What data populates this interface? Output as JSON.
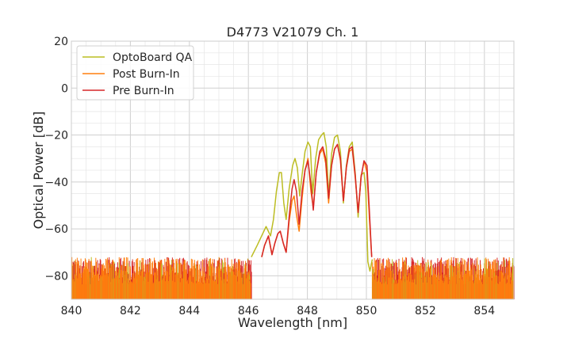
{
  "chart_data": {
    "type": "line",
    "title": "D4773 V21079 Ch. 1",
    "xlabel": "Wavelength [nm]",
    "ylabel": "Optical Power [dB]",
    "xlim": [
      840,
      855
    ],
    "ylim": [
      -90,
      20
    ],
    "xticks": [
      840,
      842,
      844,
      846,
      848,
      850,
      852,
      854
    ],
    "yticks": [
      -80,
      -60,
      -40,
      -20,
      0,
      20
    ],
    "xtick_labels": [
      "840",
      "842",
      "844",
      "846",
      "848",
      "850",
      "852",
      "854"
    ],
    "ytick_labels": [
      "−80",
      "−60",
      "−40",
      "−20",
      "0",
      "20"
    ],
    "grid": true,
    "legend_position": "top-left",
    "noise_floor": {
      "min": -90,
      "max": -72,
      "range_left": [
        840,
        846.1
      ],
      "range_right": [
        850.2,
        855
      ]
    },
    "series": [
      {
        "name": "OptoBoard QA",
        "color": "#bcbd22",
        "points": [
          [
            846.1,
            -72
          ],
          [
            846.3,
            -67
          ],
          [
            846.45,
            -63
          ],
          [
            846.6,
            -59
          ],
          [
            846.75,
            -63
          ],
          [
            846.85,
            -56
          ],
          [
            846.95,
            -44
          ],
          [
            847.05,
            -36
          ],
          [
            847.12,
            -36
          ],
          [
            847.2,
            -49
          ],
          [
            847.28,
            -56
          ],
          [
            847.38,
            -43
          ],
          [
            847.5,
            -33
          ],
          [
            847.58,
            -30
          ],
          [
            847.66,
            -34
          ],
          [
            847.74,
            -46
          ],
          [
            847.82,
            -37
          ],
          [
            847.92,
            -27
          ],
          [
            848.02,
            -23
          ],
          [
            848.1,
            -25
          ],
          [
            848.18,
            -45
          ],
          [
            848.28,
            -30
          ],
          [
            848.38,
            -22
          ],
          [
            848.48,
            -20
          ],
          [
            848.56,
            -19
          ],
          [
            848.64,
            -25
          ],
          [
            848.72,
            -46
          ],
          [
            848.82,
            -28
          ],
          [
            848.92,
            -21
          ],
          [
            849.02,
            -20
          ],
          [
            849.12,
            -27
          ],
          [
            849.22,
            -49
          ],
          [
            849.32,
            -33
          ],
          [
            849.42,
            -25
          ],
          [
            849.52,
            -23
          ],
          [
            849.62,
            -36
          ],
          [
            849.72,
            -55
          ],
          [
            849.82,
            -37
          ],
          [
            849.92,
            -36
          ],
          [
            849.98,
            -44
          ],
          [
            850.05,
            -74
          ],
          [
            850.12,
            -78
          ],
          [
            850.2,
            -73
          ]
        ]
      },
      {
        "name": "Post Burn-In",
        "color": "#ff7f0e",
        "points": [
          [
            846.45,
            -72
          ],
          [
            846.55,
            -67
          ],
          [
            846.68,
            -63
          ],
          [
            846.8,
            -71
          ],
          [
            846.9,
            -66
          ],
          [
            847.0,
            -62
          ],
          [
            847.08,
            -61
          ],
          [
            847.18,
            -66
          ],
          [
            847.28,
            -70
          ],
          [
            847.38,
            -57
          ],
          [
            847.48,
            -48
          ],
          [
            847.55,
            -46
          ],
          [
            847.63,
            -54
          ],
          [
            847.72,
            -61
          ],
          [
            847.82,
            -47
          ],
          [
            847.92,
            -35
          ],
          [
            848.02,
            -30
          ],
          [
            848.12,
            -44
          ],
          [
            848.2,
            -51
          ],
          [
            848.3,
            -36
          ],
          [
            848.42,
            -28
          ],
          [
            848.52,
            -26
          ],
          [
            848.62,
            -32
          ],
          [
            848.72,
            -49
          ],
          [
            848.82,
            -33
          ],
          [
            848.92,
            -26
          ],
          [
            849.02,
            -24
          ],
          [
            849.12,
            -31
          ],
          [
            849.22,
            -48
          ],
          [
            849.32,
            -34
          ],
          [
            849.42,
            -27
          ],
          [
            849.52,
            -26
          ],
          [
            849.62,
            -38
          ],
          [
            849.72,
            -53
          ],
          [
            849.82,
            -38
          ],
          [
            849.92,
            -31
          ],
          [
            850.02,
            -36
          ],
          [
            850.1,
            -55
          ],
          [
            850.18,
            -72
          ]
        ]
      },
      {
        "name": "Pre Burn-In",
        "color": "#d62728",
        "points": [
          [
            846.45,
            -72
          ],
          [
            846.55,
            -67
          ],
          [
            846.68,
            -63
          ],
          [
            846.8,
            -71
          ],
          [
            846.9,
            -66
          ],
          [
            847.0,
            -62
          ],
          [
            847.08,
            -61
          ],
          [
            847.18,
            -66
          ],
          [
            847.28,
            -70
          ],
          [
            847.38,
            -55
          ],
          [
            847.48,
            -43
          ],
          [
            847.55,
            -39
          ],
          [
            847.63,
            -44
          ],
          [
            847.72,
            -58
          ],
          [
            847.82,
            -44
          ],
          [
            847.92,
            -35
          ],
          [
            848.02,
            -31
          ],
          [
            848.12,
            -41
          ],
          [
            848.2,
            -52
          ],
          [
            848.3,
            -36
          ],
          [
            848.42,
            -27
          ],
          [
            848.52,
            -25
          ],
          [
            848.62,
            -30
          ],
          [
            848.72,
            -47
          ],
          [
            848.82,
            -33
          ],
          [
            848.92,
            -26
          ],
          [
            849.02,
            -24
          ],
          [
            849.12,
            -30
          ],
          [
            849.22,
            -48
          ],
          [
            849.32,
            -34
          ],
          [
            849.42,
            -26
          ],
          [
            849.52,
            -25
          ],
          [
            849.62,
            -37
          ],
          [
            849.72,
            -53
          ],
          [
            849.82,
            -38
          ],
          [
            849.92,
            -31
          ],
          [
            850.02,
            -33
          ],
          [
            850.1,
            -52
          ],
          [
            850.18,
            -72
          ]
        ]
      }
    ]
  }
}
